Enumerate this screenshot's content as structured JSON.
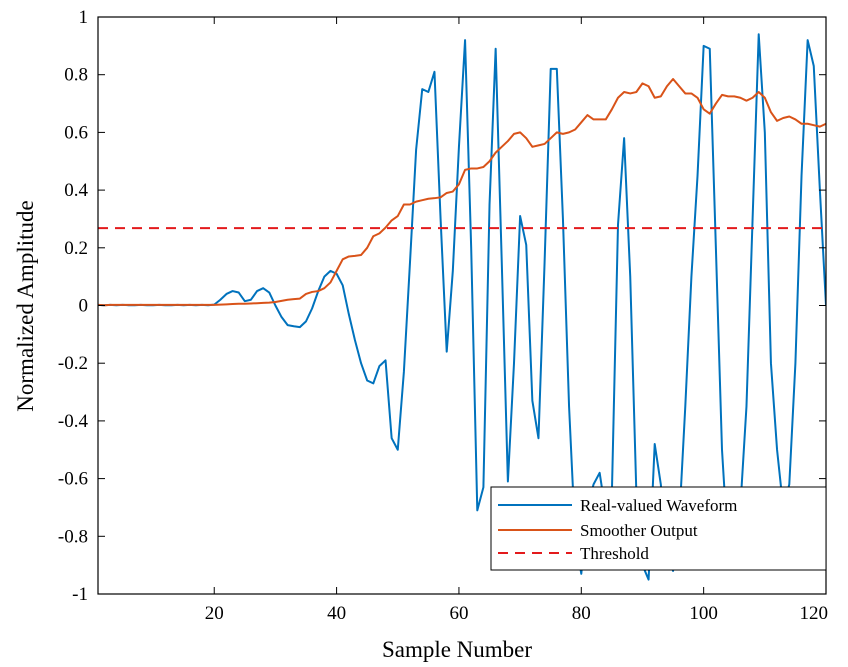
{
  "chart_data": {
    "type": "line",
    "title": "",
    "xlabel": "Sample Number",
    "ylabel": "Normalized Amplitude",
    "xlim": [
      1,
      120
    ],
    "ylim": [
      -1,
      1
    ],
    "x_ticks": [
      20,
      40,
      60,
      80,
      100,
      120
    ],
    "y_ticks": [
      -1,
      -0.8,
      -0.6,
      -0.4,
      -0.2,
      0,
      0.2,
      0.4,
      0.6,
      0.8,
      1
    ],
    "x_tick_labels": [
      "20",
      "40",
      "60",
      "80",
      "100",
      "120"
    ],
    "y_tick_labels": [
      "-1",
      "-0.8",
      "-0.6",
      "-0.4",
      "-0.2",
      "0",
      "0.2",
      "0.4",
      "0.6",
      "0.8",
      "1"
    ],
    "grid": false,
    "legend_position": "bottom-right",
    "series": [
      {
        "name": "Real-valued Waveform",
        "color": "#0072BD",
        "style": "solid",
        "x": [
          1,
          2,
          3,
          4,
          5,
          6,
          7,
          8,
          9,
          10,
          11,
          12,
          13,
          14,
          15,
          16,
          17,
          18,
          19,
          20,
          21,
          22,
          23,
          24,
          25,
          26,
          27,
          28,
          29,
          30,
          31,
          32,
          33,
          34,
          35,
          36,
          37,
          38,
          39,
          40,
          41,
          42,
          43,
          44,
          45,
          46,
          47,
          48,
          49,
          50,
          51,
          52,
          53,
          54,
          55,
          56,
          57,
          58,
          59,
          60,
          61,
          62,
          63,
          64,
          65,
          66,
          67,
          68,
          69,
          70,
          71,
          72,
          73,
          74,
          75,
          76,
          77,
          78,
          79,
          80,
          81,
          82,
          83,
          84,
          85,
          86,
          87,
          88,
          89,
          90,
          91,
          92,
          93,
          94,
          95,
          96,
          97,
          98,
          99,
          100,
          101,
          102,
          103,
          104,
          105,
          106,
          107,
          108,
          109,
          110,
          111,
          112,
          113,
          114,
          115,
          116,
          117,
          118,
          119,
          120
        ],
        "values": [
          0.002,
          0.001,
          0.002,
          0.001,
          0.002,
          0.001,
          0.001,
          0.002,
          0.001,
          0.001,
          0.002,
          0.001,
          0.001,
          0.002,
          0.001,
          0.002,
          0.001,
          0.002,
          0.001,
          0.003,
          0.02,
          0.04,
          0.05,
          0.045,
          0.015,
          0.02,
          0.05,
          0.06,
          0.045,
          0.0,
          -0.04,
          -0.068,
          -0.072,
          -0.075,
          -0.055,
          -0.01,
          0.05,
          0.1,
          0.12,
          0.11,
          0.07,
          -0.03,
          -0.12,
          -0.2,
          -0.26,
          -0.27,
          -0.21,
          -0.19,
          -0.46,
          -0.5,
          -0.23,
          0.15,
          0.54,
          0.75,
          0.74,
          0.81,
          0.3,
          -0.16,
          0.12,
          0.55,
          0.92,
          0.2,
          -0.71,
          -0.63,
          0.35,
          0.89,
          0.15,
          -0.61,
          -0.2,
          0.31,
          0.21,
          -0.33,
          -0.46,
          0.15,
          0.82,
          0.82,
          0.3,
          -0.35,
          -0.8,
          -0.93,
          -0.7,
          -0.62,
          -0.58,
          -0.72,
          -0.65,
          0.28,
          0.58,
          0.1,
          -0.65,
          -0.9,
          -0.95,
          -0.48,
          -0.62,
          -0.86,
          -0.92,
          -0.75,
          -0.35,
          0.1,
          0.45,
          0.9,
          0.89,
          0.2,
          -0.5,
          -0.85,
          -0.9,
          -0.7,
          -0.35,
          0.3,
          0.94,
          0.6,
          -0.2,
          -0.5,
          -0.7,
          -0.62,
          -0.2,
          0.45,
          0.92,
          0.83,
          0.4,
          0.0
        ]
      },
      {
        "name": "Smoother Output",
        "color": "#D95319",
        "style": "solid",
        "x": [
          1,
          2,
          3,
          4,
          5,
          6,
          7,
          8,
          9,
          10,
          11,
          12,
          13,
          14,
          15,
          16,
          17,
          18,
          19,
          20,
          21,
          22,
          23,
          24,
          25,
          26,
          27,
          28,
          29,
          30,
          31,
          32,
          33,
          34,
          35,
          36,
          37,
          38,
          39,
          40,
          41,
          42,
          43,
          44,
          45,
          46,
          47,
          48,
          49,
          50,
          51,
          52,
          53,
          54,
          55,
          56,
          57,
          58,
          59,
          60,
          61,
          62,
          63,
          64,
          65,
          66,
          67,
          68,
          69,
          70,
          71,
          72,
          73,
          74,
          75,
          76,
          77,
          78,
          79,
          80,
          81,
          82,
          83,
          84,
          85,
          86,
          87,
          88,
          89,
          90,
          91,
          92,
          93,
          94,
          95,
          96,
          97,
          98,
          99,
          100,
          101,
          102,
          103,
          104,
          105,
          106,
          107,
          108,
          109,
          110,
          111,
          112,
          113,
          114,
          115,
          116,
          117,
          118,
          119,
          120
        ],
        "values": [
          0.002,
          0.001,
          0.002,
          0.002,
          0.002,
          0.002,
          0.002,
          0.002,
          0.002,
          0.002,
          0.002,
          0.002,
          0.002,
          0.002,
          0.002,
          0.002,
          0.002,
          0.002,
          0.002,
          0.002,
          0.003,
          0.004,
          0.005,
          0.006,
          0.006,
          0.007,
          0.008,
          0.009,
          0.01,
          0.012,
          0.016,
          0.02,
          0.022,
          0.024,
          0.04,
          0.047,
          0.05,
          0.06,
          0.08,
          0.12,
          0.16,
          0.17,
          0.172,
          0.175,
          0.2,
          0.24,
          0.25,
          0.27,
          0.295,
          0.31,
          0.35,
          0.35,
          0.36,
          0.365,
          0.37,
          0.372,
          0.375,
          0.39,
          0.395,
          0.42,
          0.47,
          0.475,
          0.475,
          0.48,
          0.5,
          0.53,
          0.55,
          0.57,
          0.595,
          0.6,
          0.58,
          0.55,
          0.555,
          0.56,
          0.58,
          0.6,
          0.595,
          0.6,
          0.61,
          0.635,
          0.66,
          0.645,
          0.645,
          0.645,
          0.68,
          0.72,
          0.74,
          0.735,
          0.74,
          0.77,
          0.76,
          0.72,
          0.725,
          0.76,
          0.785,
          0.76,
          0.735,
          0.735,
          0.72,
          0.68,
          0.665,
          0.7,
          0.73,
          0.725,
          0.725,
          0.72,
          0.71,
          0.72,
          0.74,
          0.72,
          0.67,
          0.64,
          0.65,
          0.655,
          0.645,
          0.63,
          0.63,
          0.625,
          0.62,
          0.63
        ]
      },
      {
        "name": "Threshold",
        "color": "#E31A1C",
        "style": "dashed",
        "x": [
          1,
          120
        ],
        "values": [
          0.268,
          0.268
        ]
      }
    ]
  }
}
